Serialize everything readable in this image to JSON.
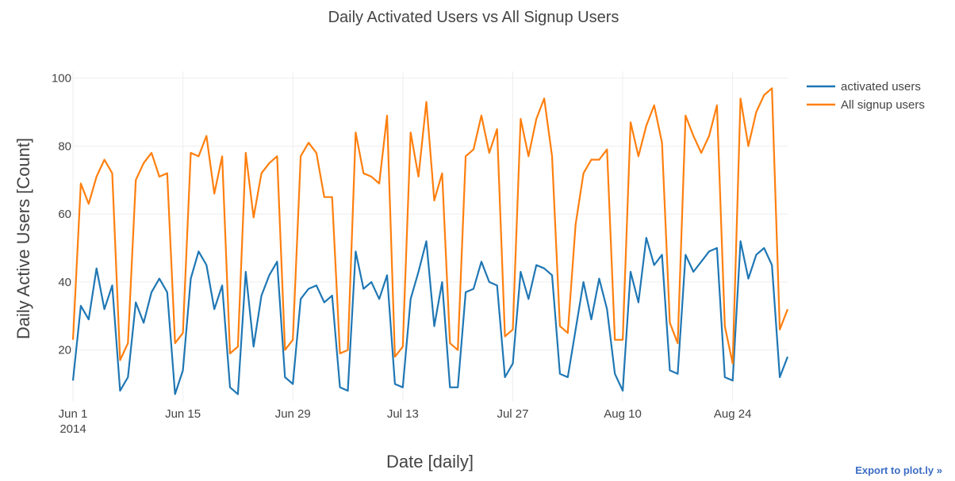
{
  "chart_data": {
    "type": "line",
    "title": "Daily Activated Users vs All Signup Users",
    "xlabel": "Date [daily]",
    "ylabel": "Daily Active Users [Count]",
    "x_start": "2014-06-01",
    "x_end": "2014-08-31",
    "ylim": [
      5,
      102
    ],
    "yticks": [
      20,
      40,
      60,
      80,
      100
    ],
    "xticks": [
      {
        "date": "2014-06-01",
        "label": "Jun 1",
        "sublabel": "2014"
      },
      {
        "date": "2014-06-15",
        "label": "Jun 15",
        "sublabel": ""
      },
      {
        "date": "2014-06-29",
        "label": "Jun 29",
        "sublabel": ""
      },
      {
        "date": "2014-07-13",
        "label": "Jul 13",
        "sublabel": ""
      },
      {
        "date": "2014-07-27",
        "label": "Jul 27",
        "sublabel": ""
      },
      {
        "date": "2014-08-10",
        "label": "Aug 10",
        "sublabel": ""
      },
      {
        "date": "2014-08-24",
        "label": "Aug 24",
        "sublabel": ""
      }
    ],
    "grid": true,
    "legend_position": "top-right",
    "series": [
      {
        "name": "activated users",
        "color": "#1f77b4",
        "values": [
          11,
          33,
          29,
          44,
          32,
          39,
          8,
          12,
          34,
          28,
          37,
          41,
          37,
          7,
          14,
          41,
          49,
          45,
          32,
          39,
          9,
          7,
          43,
          21,
          36,
          42,
          46,
          12,
          10,
          35,
          38,
          39,
          34,
          36,
          9,
          8,
          49,
          38,
          40,
          35,
          42,
          10,
          9,
          35,
          43,
          52,
          27,
          40,
          9,
          9,
          37,
          38,
          46,
          40,
          39,
          12,
          16,
          43,
          35,
          45,
          44,
          42,
          13,
          12,
          26,
          40,
          29,
          41,
          32,
          13,
          8,
          43,
          34,
          53,
          45,
          48,
          14,
          13,
          48,
          43,
          46,
          49,
          50,
          12,
          11,
          52,
          41,
          48,
          50,
          45,
          12,
          18
        ]
      },
      {
        "name": "All signup users",
        "color": "#ff7f0e",
        "values": [
          23,
          69,
          63,
          71,
          76,
          72,
          17,
          22,
          70,
          75,
          78,
          71,
          72,
          22,
          25,
          78,
          77,
          83,
          66,
          77,
          19,
          21,
          78,
          59,
          72,
          75,
          77,
          20,
          23,
          77,
          81,
          78,
          65,
          65,
          19,
          20,
          84,
          72,
          71,
          69,
          89,
          18,
          21,
          84,
          71,
          93,
          64,
          72,
          22,
          20,
          77,
          79,
          89,
          78,
          85,
          24,
          26,
          88,
          77,
          88,
          94,
          77,
          27,
          25,
          57,
          72,
          76,
          76,
          79,
          23,
          23,
          87,
          77,
          86,
          92,
          81,
          28,
          22,
          89,
          83,
          78,
          83,
          92,
          27,
          16,
          94,
          80,
          90,
          95,
          97,
          26,
          32
        ]
      }
    ]
  },
  "export_label": "Export to plot.ly »"
}
